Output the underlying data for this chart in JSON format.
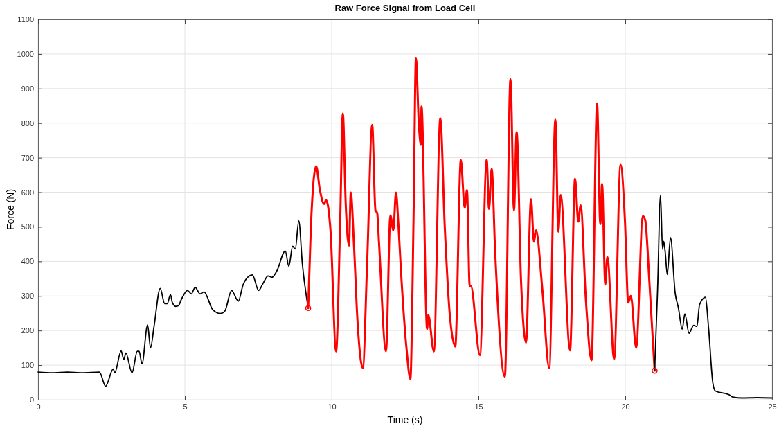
{
  "chart_data": {
    "type": "line",
    "title": "Raw Force Signal from Load Cell",
    "xlabel": "Time (s)",
    "ylabel": "Force (N)",
    "xlim": [
      0,
      25
    ],
    "xticks": [
      0,
      5,
      10,
      15,
      20,
      25
    ],
    "ylim": [
      0,
      1100
    ],
    "yticks": [
      0,
      100,
      200,
      300,
      400,
      500,
      600,
      700,
      800,
      900,
      1000,
      1100
    ],
    "grid": true,
    "line_style": "solid",
    "series": [
      {
        "color": "#000000",
        "x": [
          0,
          0.5,
          1,
          1.5,
          2.09,
          2.3,
          2.56,
          2.61,
          2.83,
          2.92,
          2.99,
          3.2,
          3.38,
          3.44,
          3.54,
          3.73,
          3.83,
          3.95,
          4.16,
          4.31,
          4.4,
          4.51,
          4.57,
          4.68,
          4.78,
          4.88,
          5.09,
          5.22,
          5.35,
          5.52,
          5.65,
          5.95,
          6.21,
          6.36,
          6.59,
          6.82,
          6.98,
          7.15,
          7.3,
          7.51,
          7.66,
          7.83,
          7.96,
          8.13,
          8.42,
          8.54,
          8.67,
          8.76,
          8.88,
          9.0,
          9.2
        ],
        "values": [
          80,
          78,
          80,
          78,
          80,
          39,
          89,
          78,
          141,
          116,
          135,
          78,
          140,
          140,
          104,
          216,
          150,
          212,
          322,
          278,
          278,
          304,
          282,
          270,
          272,
          290,
          316,
          306,
          325,
          306,
          312,
          260,
          249,
          256,
          316,
          285,
          332,
          355,
          361,
          316,
          336,
          358,
          354,
          372,
          430,
          386,
          444,
          436,
          517,
          394,
          265
        ]
      },
      {
        "color": "#ff0000",
        "x": [
          9.2,
          9.29,
          9.47,
          9.6,
          9.74,
          9.81,
          9.96,
          10.15,
          10.29,
          10.38,
          10.48,
          10.59,
          10.65,
          10.76,
          10.87,
          11.06,
          11.21,
          11.38,
          11.49,
          11.55,
          11.61,
          11.85,
          12.0,
          12.1,
          12.19,
          12.27,
          12.36,
          12.55,
          12.68,
          12.79,
          12.87,
          12.97,
          13.04,
          13.06,
          13.25,
          13.29,
          13.48,
          13.7,
          13.85,
          14.02,
          14.21,
          14.4,
          14.53,
          14.61,
          14.7,
          14.74,
          15.05,
          15.28,
          15.36,
          15.45,
          15.57,
          15.9,
          16.09,
          16.21,
          16.3,
          16.45,
          16.62,
          16.79,
          16.89,
          16.96,
          17.18,
          17.41,
          17.62,
          17.72,
          17.8,
          18.12,
          18.29,
          18.4,
          18.48,
          18.66,
          18.85,
          19.04,
          19.15,
          19.21,
          19.32,
          19.39,
          19.62,
          19.84,
          19.99,
          20.1,
          20.19,
          20.37,
          20.6,
          20.68,
          20.82,
          21.0
        ],
        "values": [
          265,
          497,
          675,
          606,
          566,
          577,
          489,
          140,
          518,
          828,
          562,
          446,
          599,
          446,
          242,
          92,
          402,
          795,
          548,
          540,
          457,
          140,
          533,
          490,
          599,
          511,
          373,
          147,
          60,
          533,
          987,
          795,
          737,
          848,
          205,
          245,
          140,
          814,
          504,
          249,
          154,
          694,
          555,
          606,
          329,
          329,
          129,
          694,
          552,
          668,
          424,
          67,
          927,
          548,
          774,
          344,
          165,
          580,
          457,
          490,
          315,
          92,
          810,
          486,
          592,
          143,
          639,
          515,
          562,
          286,
          114,
          857,
          508,
          624,
          333,
          413,
          118,
          679,
          515,
          281,
          300,
          150,
          531,
          519,
          342,
          84
        ]
      },
      {
        "color": "#000000",
        "x": [
          21.0,
          21.1,
          21.2,
          21.27,
          21.31,
          21.36,
          21.43,
          21.54,
          21.7,
          21.81,
          21.94,
          22.03,
          22.17,
          22.33,
          22.44,
          22.53,
          22.73,
          22.84,
          22.98,
          23.07,
          23.52,
          23.66,
          23.97,
          24.5,
          25
        ],
        "values": [
          84,
          319,
          592,
          435,
          458,
          427,
          362,
          469,
          308,
          265,
          204,
          248,
          192,
          215,
          212,
          275,
          296,
          204,
          50,
          25,
          15,
          8,
          5,
          6,
          5
        ]
      },
      {
        "type": "scatter",
        "color": "#ff0000",
        "marker": "circle",
        "x": [
          9.2,
          21.0
        ],
        "values": [
          265,
          84
        ]
      }
    ]
  }
}
